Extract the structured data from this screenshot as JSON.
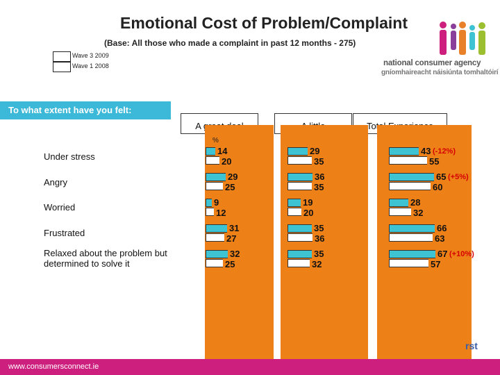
{
  "header": {
    "title": "Emotional Cost of Problem/Complaint",
    "subtitle": "(Base: All those who made a complaint in past 12 months - 275)"
  },
  "legend": [
    {
      "label": "Wave 3 2009"
    },
    {
      "label": "Wave 1 2008"
    }
  ],
  "question": "To what extent have you felt:",
  "percent_sign": "%",
  "brand": {
    "line1": "national consumer agency",
    "line2": "gníomhaireacht náisiúnta tomhaltóirí"
  },
  "footer": {
    "url": "www.consumersconnect.ie",
    "fragment": "rst"
  },
  "colors": {
    "wave3": "#3ec3d3",
    "wave1": "#ffffff",
    "panel": "#ee8018",
    "footer": "#cd1f7e",
    "change": "#d40000",
    "question": "#3cb8d8"
  },
  "chart_data": {
    "type": "bar",
    "orientation": "horizontal",
    "panels": [
      "A great deal",
      "A little",
      "Total Experience"
    ],
    "categories": [
      "Under stress",
      "Angry",
      "Worried",
      "Frustrated",
      "Relaxed about the problem but determined to solve it"
    ],
    "series": [
      {
        "name": "Wave 3 2009",
        "values": {
          "A great deal": [
            14,
            29,
            9,
            31,
            32
          ],
          "A little": [
            29,
            36,
            19,
            35,
            35
          ],
          "Total Experience": [
            43,
            65,
            28,
            66,
            67
          ]
        }
      },
      {
        "name": "Wave 1 2008",
        "values": {
          "A great deal": [
            20,
            25,
            12,
            27,
            25
          ],
          "A little": [
            35,
            35,
            20,
            36,
            32
          ],
          "Total Experience": [
            55,
            60,
            32,
            63,
            57
          ]
        }
      }
    ],
    "changes": [
      "(-12%)",
      "(+5%)",
      "",
      "",
      "(+10%)"
    ],
    "unit": "%"
  }
}
